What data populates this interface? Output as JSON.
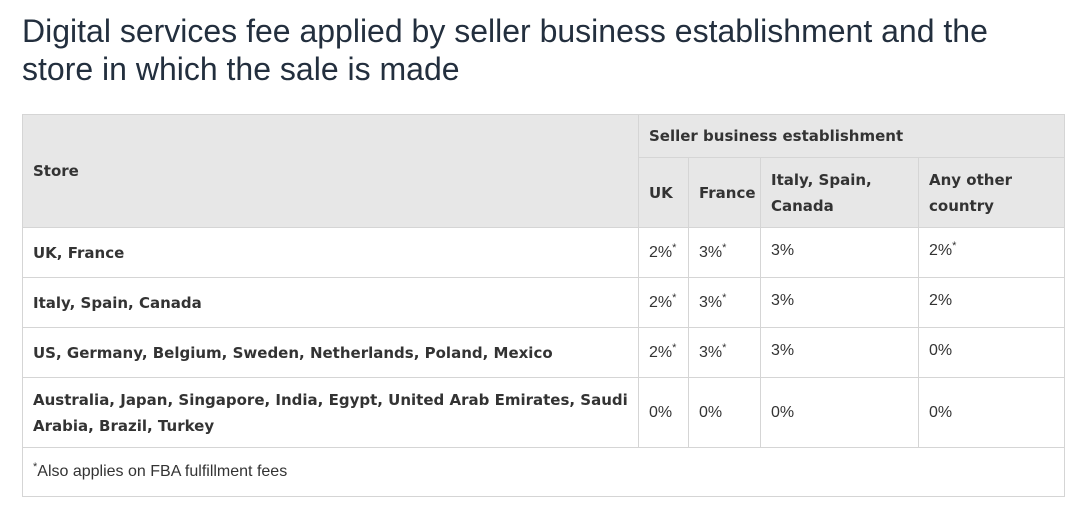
{
  "title": "Digital services fee applied by seller business establishment and the store in which the sale is made",
  "table": {
    "store_header": "Store",
    "group_header": "Seller business establishment",
    "columns": [
      "UK",
      "France",
      "Italy, Spain, Canada",
      "Any other country"
    ],
    "rows": [
      {
        "store": "UK, France",
        "cells": [
          {
            "value": "2%",
            "mark": "*"
          },
          {
            "value": "3%",
            "mark": "*"
          },
          {
            "value": "3%",
            "mark": ""
          },
          {
            "value": "2%",
            "mark": "*"
          }
        ]
      },
      {
        "store": "Italy, Spain, Canada",
        "cells": [
          {
            "value": "2%",
            "mark": "*"
          },
          {
            "value": "3%",
            "mark": "*"
          },
          {
            "value": "3%",
            "mark": ""
          },
          {
            "value": "2%",
            "mark": ""
          }
        ]
      },
      {
        "store": "US, Germany, Belgium, Sweden, Netherlands, Poland, Mexico",
        "cells": [
          {
            "value": "2%",
            "mark": "*"
          },
          {
            "value": "3%",
            "mark": "*"
          },
          {
            "value": "3%",
            "mark": ""
          },
          {
            "value": "0%",
            "mark": ""
          }
        ]
      },
      {
        "store": "Australia, Japan, Singapore, India, Egypt, United Arab Emirates, Saudi Arabia, Brazil, Turkey",
        "cells": [
          {
            "value": "0%",
            "mark": ""
          },
          {
            "value": "0%",
            "mark": ""
          },
          {
            "value": "0%",
            "mark": ""
          },
          {
            "value": "0%",
            "mark": ""
          }
        ]
      }
    ],
    "footnote_mark": "*",
    "footnote": "Also applies on FBA fulfillment fees"
  }
}
